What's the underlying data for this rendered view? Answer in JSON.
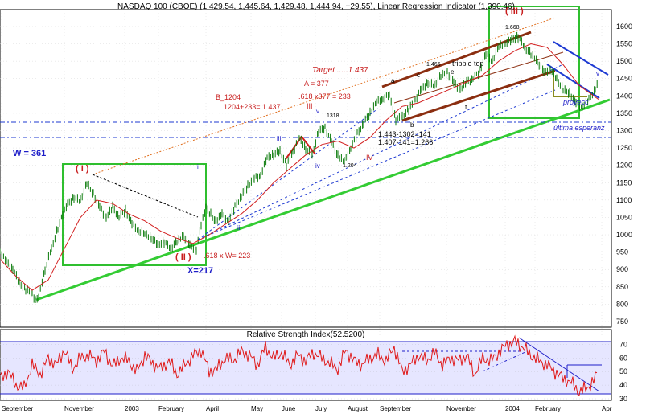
{
  "header": {
    "title": "NASDAQ 100 (CBOE) (1,429.54, 1,445.64, 1,429.48, 1,444.94, +29.55), Linear Regression Indicator (1,390.46)"
  },
  "colors": {
    "bg": "#ffffff",
    "price_bar": "#0a7a0a",
    "regression": "#d21e1e",
    "green_line": "#33cc33",
    "box_green": "#2fbf2f",
    "blue_dash": "#1e3ad2",
    "dark_red": "#8b2e10",
    "label_red": "#c81e1e",
    "label_blue": "#1e1ec8",
    "rsi_line": "#e01818",
    "rsi_bg": "#e6e6ff",
    "text": "#000000"
  },
  "chart_data": [
    {
      "type": "line",
      "title": "NASDAQ 100 (CBOE) (1,429.54, 1,445.64, 1,429.48, 1,444.94, +29.55), Linear Regression Indicator (1,390.46)",
      "series": [
        {
          "name": "NASDAQ 100 (CBOE)",
          "x": [
            0,
            8,
            16,
            24,
            32,
            40,
            44,
            48,
            56,
            64,
            72,
            78,
            84,
            92,
            100,
            108,
            116,
            124,
            132,
            140,
            148,
            156,
            164,
            172,
            180,
            188,
            196,
            204,
            212,
            220,
            228,
            236,
            244,
            250,
            256,
            262,
            268,
            276,
            284,
            292,
            300,
            308,
            316,
            324,
            332,
            340,
            348,
            356,
            364,
            372,
            380,
            388,
            396,
            404,
            412,
            420,
            428,
            436,
            444,
            452,
            460,
            468,
            476,
            484,
            492,
            500,
            508,
            516,
            524,
            532,
            540,
            548,
            556,
            564,
            572,
            580,
            588,
            596,
            604,
            612,
            620,
            628,
            636,
            644,
            652,
            660,
            668,
            676,
            684,
            692,
            700,
            708,
            716,
            724,
            732,
            740,
            744
          ],
          "values": [
            950,
            920,
            900,
            860,
            840,
            830,
            810,
            820,
            900,
            960,
            1020,
            1060,
            1090,
            1110,
            1100,
            1150,
            1120,
            1080,
            1050,
            1080,
            1050,
            1070,
            1030,
            1010,
            1000,
            990,
            970,
            980,
            960,
            980,
            1000,
            970,
            960,
            1030,
            1080,
            1060,
            1040,
            1060,
            1040,
            1080,
            1110,
            1140,
            1160,
            1170,
            1220,
            1230,
            1240,
            1200,
            1240,
            1280,
            1250,
            1230,
            1300,
            1310,
            1270,
            1230,
            1210,
            1250,
            1290,
            1320,
            1350,
            1380,
            1390,
            1400,
            1330,
            1340,
            1360,
            1390,
            1420,
            1440,
            1430,
            1460,
            1470,
            1440,
            1420,
            1440,
            1450,
            1470,
            1520,
            1500,
            1540,
            1550,
            1560,
            1570,
            1540,
            1520,
            1500,
            1470,
            1480,
            1450,
            1420,
            1410,
            1380,
            1370,
            1390,
            1420,
            1440
          ]
        },
        {
          "name": "Linear Regression Indicator",
          "x": [
            0,
            20,
            40,
            60,
            80,
            100,
            120,
            140,
            160,
            180,
            200,
            220,
            240,
            260,
            280,
            300,
            320,
            340,
            360,
            380,
            400,
            420,
            440,
            460,
            480,
            500,
            520,
            540,
            560,
            580,
            600,
            620,
            640,
            660,
            680,
            700,
            720,
            744
          ],
          "values": [
            930,
            880,
            840,
            870,
            960,
            1050,
            1100,
            1090,
            1060,
            1040,
            1010,
            990,
            975,
            1000,
            1030,
            1060,
            1100,
            1150,
            1190,
            1230,
            1260,
            1270,
            1250,
            1280,
            1330,
            1370,
            1380,
            1400,
            1420,
            1440,
            1460,
            1500,
            1530,
            1550,
            1540,
            1490,
            1430,
            1390
          ]
        }
      ],
      "ylim": [
        750,
        1630
      ],
      "yticks": [
        "1600",
        "1550",
        "1500",
        "1450",
        "1400",
        "1350",
        "1300",
        "1250",
        "1200",
        "1150",
        "1100",
        "1050",
        "1000",
        "950",
        "900",
        "850",
        "800",
        "750"
      ],
      "xticks": [
        "September",
        "November",
        "2003",
        "February",
        "April",
        "May",
        "June",
        "July",
        "August",
        "September",
        "November",
        "2004",
        "February",
        "Apr"
      ],
      "grid": "on"
    },
    {
      "type": "line",
      "title": "Relative Strength Index(52.5200)",
      "series": [
        {
          "name": "Relative Strength Index",
          "x": [
            0,
            10,
            20,
            30,
            40,
            50,
            60,
            70,
            80,
            90,
            100,
            110,
            120,
            130,
            140,
            150,
            160,
            170,
            180,
            190,
            200,
            210,
            220,
            230,
            240,
            250,
            260,
            270,
            280,
            290,
            300,
            310,
            320,
            330,
            340,
            350,
            360,
            370,
            380,
            390,
            400,
            410,
            420,
            430,
            440,
            450,
            460,
            470,
            480,
            490,
            500,
            510,
            520,
            530,
            540,
            550,
            560,
            570,
            580,
            590,
            600,
            610,
            620,
            630,
            640,
            650,
            660,
            670,
            680,
            690,
            700,
            710,
            720,
            730,
            740,
            744
          ],
          "values": [
            45,
            50,
            40,
            38,
            55,
            48,
            60,
            55,
            66,
            52,
            60,
            62,
            58,
            65,
            54,
            60,
            58,
            50,
            62,
            56,
            52,
            58,
            48,
            55,
            62,
            66,
            50,
            52,
            60,
            58,
            65,
            62,
            55,
            68,
            60,
            64,
            55,
            62,
            58,
            64,
            60,
            56,
            52,
            66,
            58,
            55,
            60,
            62,
            58,
            68,
            50,
            55,
            62,
            58,
            64,
            55,
            60,
            58,
            62,
            48,
            60,
            58,
            64,
            70,
            72,
            68,
            62,
            58,
            55,
            50,
            45,
            42,
            35,
            38,
            45,
            52
          ]
        }
      ],
      "ylim": [
        30,
        75
      ],
      "yticks": [
        "70",
        "60",
        "50",
        "40",
        "30"
      ]
    }
  ],
  "annotations": {
    "wave_I": "( I )",
    "wave_II": "( II )",
    "wave_III": "( III )",
    "w361": "W = 361",
    "x217": "X=217",
    "target": "Target .....1.437",
    "a377": "A = 377",
    "a618": ".618 x377 = 233",
    "b1204": "B_1204",
    "b1204sum": "1204+233= 1.437",
    "w618": ".618 x W= 223",
    "calc1": "1.443-1302=141",
    "calc2": "1.407-141=1.266",
    "v1318": "1318",
    "v1204": "1.204",
    "v1466": "1.466",
    "v1668": "1.668",
    "tripple": "tripple top",
    "proyec": "proyecc",
    "ultima": "última esperanz",
    "w_iii": "iii",
    "w_iv": "iv",
    "w_v": "v",
    "w_III_small": "III",
    "w_IV": "IV",
    "w_i": "i",
    "w_ii": "ii",
    "w_iii2": "iii",
    "w_a": "a",
    "w_b": "b",
    "w_c": "c",
    "w_e": "e",
    "w_f": "f",
    "w_v2": "v"
  }
}
